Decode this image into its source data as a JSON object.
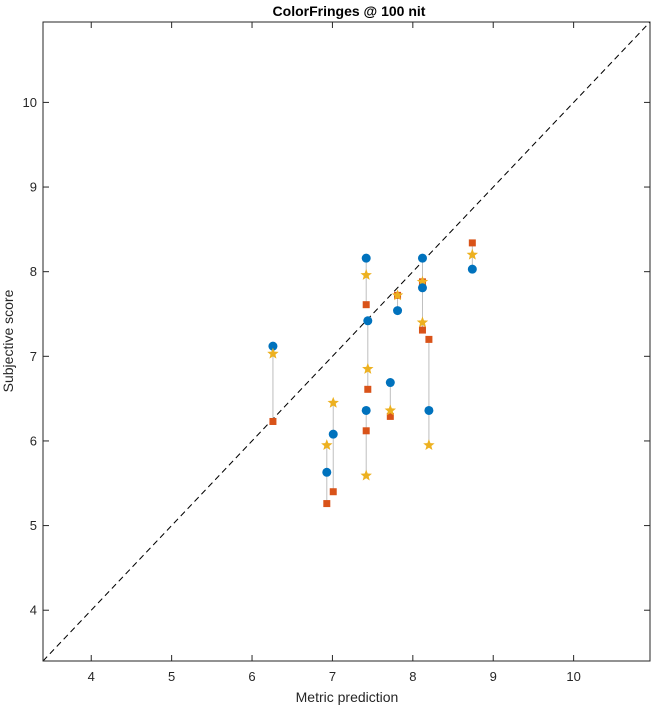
{
  "chart_data": {
    "type": "scatter",
    "title": "ColorFringes @ 100 nit",
    "xlabel": "Metric prediction",
    "ylabel": "Subjective score",
    "xlim": [
      3.4,
      10.95
    ],
    "ylim": [
      3.4,
      10.95
    ],
    "xticks": [
      "4",
      "5",
      "6",
      "7",
      "8",
      "9",
      "10"
    ],
    "yticks": [
      "4",
      "5",
      "6",
      "7",
      "8",
      "9",
      "10"
    ],
    "grid": false,
    "legend": "none",
    "reference_line": "y = x (dashed)",
    "colors": {
      "circle": "#0072BD",
      "square": "#D95319",
      "star": "#EDB120",
      "link": "#BEBEBE",
      "diag": "#000000",
      "axes": "#262626"
    },
    "points": [
      {
        "x": 6.26,
        "circle": 7.12,
        "star": 7.03,
        "square": 6.23
      },
      {
        "x": 6.93,
        "circle": 5.63,
        "star": 5.95,
        "square": 5.26
      },
      {
        "x": 7.01,
        "circle": 6.08,
        "star": 6.45,
        "square": 5.4
      },
      {
        "x": 7.42,
        "circle": 8.16,
        "star": 7.96,
        "square": 7.61
      },
      {
        "x": 7.44,
        "circle": 7.42,
        "star": 6.85,
        "square": 6.61
      },
      {
        "x": 7.42,
        "circle": 6.36,
        "star": 5.59,
        "square": 6.12
      },
      {
        "x": 7.72,
        "circle": 6.69,
        "star": 6.36,
        "square": 6.29
      },
      {
        "x": 7.81,
        "circle": 7.54,
        "star": 7.72,
        "square": 7.72
      },
      {
        "x": 8.12,
        "circle": 8.16,
        "star": 7.88,
        "square": 7.88
      },
      {
        "x": 8.12,
        "circle": 7.81,
        "star": 7.4,
        "square": 7.31
      },
      {
        "x": 8.2,
        "circle": 6.36,
        "star": 5.95,
        "square": 7.2
      },
      {
        "x": 8.74,
        "circle": 8.03,
        "star": 8.2,
        "square": 8.34
      }
    ]
  }
}
